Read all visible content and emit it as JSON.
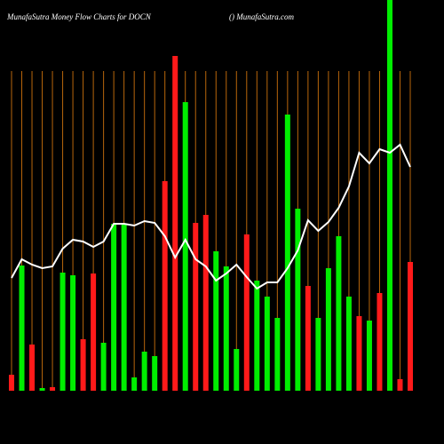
{
  "chart_data": {
    "type": "bar",
    "title": "MunafaSutra  Money Flow  Charts for DOCN",
    "subtitle": "() MunafaSutra.com",
    "ylim": [
      0,
      440
    ],
    "grid_color": "#b8660b",
    "up_color": "#00ee00",
    "down_color": "#ff1a1a",
    "line_color": "#ffffff",
    "series": [
      {
        "name": "money flow",
        "values": [
          18,
          141,
          52,
          3,
          4,
          133,
          130,
          58,
          132,
          54,
          188,
          188,
          15,
          44,
          39,
          236,
          377,
          325,
          189,
          198,
          157,
          140,
          47,
          176,
          124,
          106,
          82,
          311,
          205,
          118,
          82,
          138,
          174,
          106,
          84,
          79,
          110,
          440,
          13,
          145
        ],
        "colors": [
          "down",
          "up",
          "down",
          "up",
          "down",
          "up",
          "up",
          "down",
          "down",
          "up",
          "up",
          "up",
          "up",
          "up",
          "up",
          "down",
          "down",
          "up",
          "down",
          "down",
          "up",
          "up",
          "up",
          "down",
          "up",
          "up",
          "up",
          "up",
          "up",
          "down",
          "up",
          "up",
          "up",
          "up",
          "down",
          "up",
          "down",
          "up",
          "down",
          "down"
        ]
      },
      {
        "name": "trend",
        "type": "line",
        "values": [
          127,
          148,
          142,
          138,
          140,
          160,
          170,
          168,
          162,
          168,
          188,
          188,
          186,
          191,
          189,
          174,
          150,
          170,
          148,
          140,
          124,
          132,
          142,
          128,
          115,
          122,
          122,
          138,
          158,
          192,
          180,
          190,
          206,
          230,
          268,
          256,
          272,
          268,
          277,
          252
        ]
      }
    ]
  }
}
